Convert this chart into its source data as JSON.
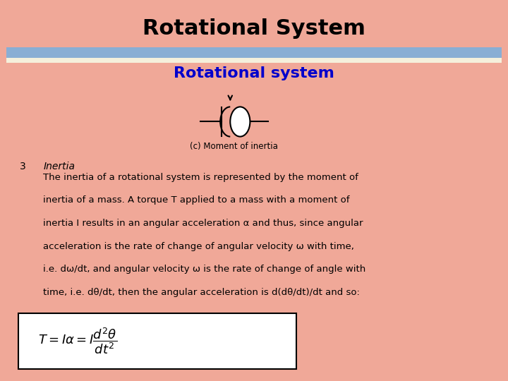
{
  "title": "Rotational System",
  "subtitle": "Rotational system",
  "subtitle_color": "#0000CC",
  "caption": "(c) Moment of inertia",
  "number_label": "3",
  "italic_heading": "Inertia",
  "body_lines": [
    "The inertia of a rotational system is represented by the moment of",
    "inertia of a mass. A torque T applied to a mass with a moment of",
    "inertia I results in an angular acceleration α and thus, since angular",
    "acceleration is the rate of change of angular velocity ω with time,",
    "i.e. dω/dt, and angular velocity ω is the rate of change of angle with",
    "time, i.e. dθ/dt, then the angular acceleration is d(dθ/dt)/dt and so:"
  ],
  "bg_color": "#FFFFFF",
  "border_color": "#F0A898",
  "header_bar_color": "#8AAED4",
  "header_bar_color2": "#F5F0DC",
  "title_fontsize": 22,
  "subtitle_fontsize": 16,
  "body_fontsize": 9.5,
  "formula_fontsize": 13
}
